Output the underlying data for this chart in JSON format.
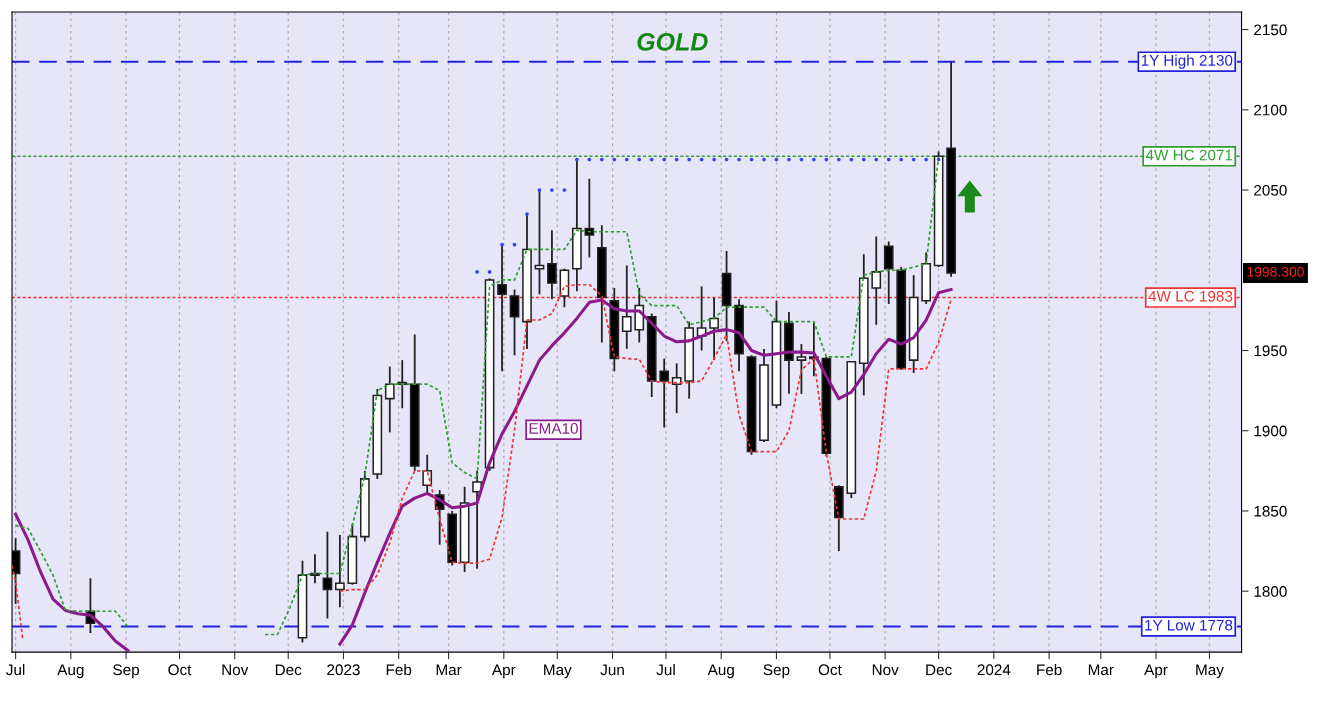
{
  "chart_data": {
    "type": "candlestick",
    "title": "GOLD",
    "x": [
      "2022-07-01",
      "2022-08-12",
      "2022-12-09",
      "2022-12-16",
      "2022-12-23",
      "2022-12-30",
      "2023-01-06",
      "2023-01-13",
      "2023-01-20",
      "2023-01-27",
      "2023-02-03",
      "2023-02-10",
      "2023-02-17",
      "2023-02-24",
      "2023-03-03",
      "2023-03-10",
      "2023-03-17",
      "2023-03-24",
      "2023-03-31",
      "2023-04-07",
      "2023-04-14",
      "2023-04-21",
      "2023-04-28",
      "2023-05-05",
      "2023-05-12",
      "2023-05-19",
      "2023-05-26",
      "2023-06-02",
      "2023-06-09",
      "2023-06-16",
      "2023-06-23",
      "2023-06-30",
      "2023-07-07",
      "2023-07-14",
      "2023-07-21",
      "2023-07-28",
      "2023-08-04",
      "2023-08-11",
      "2023-08-18",
      "2023-08-25",
      "2023-09-01",
      "2023-09-08",
      "2023-09-15",
      "2023-09-22",
      "2023-09-29",
      "2023-10-06",
      "2023-10-13",
      "2023-10-20",
      "2023-10-27",
      "2023-11-03",
      "2023-11-10",
      "2023-11-17",
      "2023-11-24",
      "2023-12-01",
      "2023-12-08"
    ],
    "ohlc": [
      [
        1825,
        1833,
        1792,
        1811
      ],
      [
        1787.5,
        1808,
        1774,
        1780
      ],
      [
        1771,
        1819,
        1768,
        1810
      ],
      [
        1810,
        1823,
        1805,
        1811
      ],
      [
        1808,
        1837,
        1783,
        1801
      ],
      [
        1801,
        1835,
        1790,
        1805
      ],
      [
        1805,
        1842,
        1804,
        1834
      ],
      [
        1834,
        1875,
        1831,
        1870
      ],
      [
        1873,
        1926,
        1870,
        1922
      ],
      [
        1920,
        1940,
        1899,
        1929
      ],
      [
        1929,
        1944,
        1914,
        1930
      ],
      [
        1929,
        1960,
        1875,
        1878
      ],
      [
        1866,
        1885,
        1860,
        1875
      ],
      [
        1860,
        1863,
        1829,
        1851
      ],
      [
        1848,
        1850,
        1816,
        1818
      ],
      [
        1818,
        1865,
        1812,
        1855
      ],
      [
        1862,
        1875,
        1814,
        1868
      ],
      [
        1877,
        1995,
        1875,
        1994
      ],
      [
        1991,
        2016,
        1937,
        1985
      ],
      [
        1984,
        1988,
        1947,
        1971
      ],
      [
        1968,
        2035,
        1951,
        2013
      ],
      [
        2001,
        2050,
        1985,
        2003
      ],
      [
        2004,
        2025,
        1982,
        1992
      ],
      [
        1984,
        2001,
        1977,
        2000
      ],
      [
        2001,
        2069,
        1987,
        2026
      ],
      [
        2026,
        2057,
        2008,
        2022
      ],
      [
        2014,
        2028,
        1955,
        1983
      ],
      [
        1981,
        1989,
        1937,
        1945
      ],
      [
        1962,
        2003,
        1951,
        1971
      ],
      [
        1963,
        1989,
        1955,
        1978
      ],
      [
        1971,
        1973,
        1921,
        1931
      ],
      [
        1937,
        1945,
        1902,
        1931
      ],
      [
        1929,
        1942,
        1911,
        1933
      ],
      [
        1931,
        1968,
        1920,
        1964
      ],
      [
        1959,
        1990,
        1950,
        1964
      ],
      [
        1964,
        1983,
        1944,
        1970
      ],
      [
        1998,
        2012,
        1956,
        1978
      ],
      [
        1978,
        1982,
        1937,
        1948
      ],
      [
        1946,
        1947,
        1885,
        1887
      ],
      [
        1894,
        1951,
        1893,
        1941
      ],
      [
        1916,
        1981,
        1914,
        1968
      ],
      [
        1967,
        1974,
        1923,
        1944
      ],
      [
        1944,
        1954,
        1923,
        1946
      ],
      [
        1945,
        1968,
        1934,
        1946
      ],
      [
        1945,
        1946,
        1884,
        1886
      ],
      [
        1865,
        1866,
        1825,
        1846
      ],
      [
        1861,
        1943,
        1858,
        1943
      ],
      [
        1942,
        2010,
        1922,
        1995
      ],
      [
        1989,
        2021,
        1966,
        1999
      ],
      [
        2015,
        2018,
        1979,
        2001
      ],
      [
        2000,
        2002,
        1938,
        1939
      ],
      [
        1944,
        1997,
        1936,
        1983
      ],
      [
        1981,
        2011,
        1979,
        2004
      ],
      [
        2003,
        2074,
        2002,
        2071
      ],
      [
        2076,
        2130,
        1996,
        1998.3
      ]
    ],
    "series": [
      {
        "name": "EMA10",
        "type": "line",
        "line_style": "solid",
        "color": "#8b1a8b",
        "x": [
          "2022-07-01",
          "2022-07-08",
          "2022-07-15",
          "2022-07-22",
          "2022-07-29",
          "2022-08-05",
          "2022-08-12",
          "2022-08-19",
          "2022-08-26",
          "2022-09-02",
          "2022-09-09",
          "2022-12-30",
          "2023-01-06",
          "2023-01-13",
          "2023-01-20",
          "2023-01-27",
          "2023-02-03",
          "2023-02-10",
          "2023-02-17",
          "2023-02-24",
          "2023-03-03",
          "2023-03-10",
          "2023-03-17",
          "2023-03-24",
          "2023-03-31",
          "2023-04-07",
          "2023-04-14",
          "2023-04-21",
          "2023-04-28",
          "2023-05-05",
          "2023-05-12",
          "2023-05-19",
          "2023-05-26",
          "2023-06-02",
          "2023-06-09",
          "2023-06-16",
          "2023-06-23",
          "2023-06-30",
          "2023-07-07",
          "2023-07-14",
          "2023-07-21",
          "2023-07-28",
          "2023-08-04",
          "2023-08-11",
          "2023-08-18",
          "2023-08-25",
          "2023-09-01",
          "2023-09-08",
          "2023-09-15",
          "2023-09-22",
          "2023-09-29",
          "2023-10-06",
          "2023-10-13",
          "2023-10-20",
          "2023-10-27",
          "2023-11-03",
          "2023-11-10",
          "2023-11-17",
          "2023-11-24",
          "2023-12-01",
          "2023-12-08"
        ],
        "values": [
          1848,
          1832,
          1812,
          1795,
          1788,
          1786,
          1785,
          1778,
          1769,
          1763,
          null,
          1767,
          1779,
          1799,
          1818,
          1836,
          1853,
          1858,
          1861,
          1857,
          1852,
          1853,
          1855,
          1880,
          1898,
          1912,
          1928,
          1944,
          1953,
          1961,
          1970,
          1980,
          1981.5,
          1976,
          1974.6,
          1974.6,
          1967,
          1959,
          1955.4,
          1956,
          1959,
          1962,
          1963,
          1961,
          1950,
          1947,
          1948,
          1949,
          1949,
          1948.5,
          1934,
          1920,
          1924,
          1935,
          1948,
          1957,
          1954,
          1958,
          1969,
          1986,
          1988
        ]
      },
      {
        "type": "line",
        "line_style": "dotted",
        "color": "#2e9e2e",
        "x": [
          "2022-07-01",
          "2022-07-08",
          "2022-07-15",
          "2022-07-22",
          "2022-07-29",
          "2022-08-05",
          "2022-08-12",
          "2022-08-19",
          "2022-08-26",
          "2022-09-02",
          "2022-09-09",
          "2022-11-18",
          "2022-11-25",
          "2022-12-02",
          "2022-12-09",
          "2022-12-16",
          "2022-12-23",
          "2022-12-30",
          "2023-01-06",
          "2023-01-13",
          "2023-01-20",
          "2023-01-27",
          "2023-02-03",
          "2023-02-10",
          "2023-02-17",
          "2023-02-24",
          "2023-03-03",
          "2023-03-10",
          "2023-03-17",
          "2023-03-24",
          "2023-03-31",
          "2023-04-07",
          "2023-04-14",
          "2023-04-21",
          "2023-04-28",
          "2023-05-05",
          "2023-05-12",
          "2023-05-19",
          "2023-05-26",
          "2023-06-02",
          "2023-06-09",
          "2023-06-16",
          "2023-06-23",
          "2023-06-30",
          "2023-07-07",
          "2023-07-14",
          "2023-07-21",
          "2023-07-28",
          "2023-08-04",
          "2023-08-11",
          "2023-08-18",
          "2023-08-25",
          "2023-09-01",
          "2023-09-08",
          "2023-09-15",
          "2023-09-22",
          "2023-09-29",
          "2023-10-06",
          "2023-10-13",
          "2023-10-20",
          "2023-10-27",
          "2023-11-03",
          "2023-11-10",
          "2023-11-17",
          "2023-11-24",
          "2023-12-01"
        ],
        "values": [
          1841,
          1839,
          1825,
          1810,
          1788,
          1787.5,
          1787.5,
          1787.5,
          1787.5,
          1778,
          null,
          1773,
          1773,
          1790,
          1810,
          1811,
          1811,
          1811,
          1841,
          1872,
          1925,
          1929,
          1929,
          1929,
          1929,
          1925,
          1880,
          1874,
          1870,
          1990,
          1994,
          1994,
          2013,
          2013,
          2013,
          2013,
          2025,
          2024,
          2024,
          2024,
          2024,
          1985,
          1978,
          1978,
          1978,
          1966,
          1968,
          1970,
          1977,
          1977,
          1977,
          1977,
          1968,
          1968,
          1968,
          1968,
          1946,
          1946,
          1946,
          1997,
          1999,
          2000,
          2000,
          2002,
          2004,
          2071
        ]
      },
      {
        "type": "line",
        "line_style": "dotted",
        "color": "#ee3333",
        "x": [
          "2022-06-29",
          "2022-07-01",
          "2022-07-05",
          "2022-07-08",
          "2022-12-30",
          "2023-01-06",
          "2023-01-13",
          "2023-01-20",
          "2023-01-27",
          "2023-02-03",
          "2023-02-10",
          "2023-02-17",
          "2023-02-24",
          "2023-03-03",
          "2023-03-10",
          "2023-03-17",
          "2023-03-24",
          "2023-03-31",
          "2023-04-07",
          "2023-04-14",
          "2023-04-21",
          "2023-04-28",
          "2023-05-05",
          "2023-05-12",
          "2023-05-19",
          "2023-05-26",
          "2023-06-02",
          "2023-06-09",
          "2023-06-16",
          "2023-06-23",
          "2023-06-30",
          "2023-07-07",
          "2023-07-14",
          "2023-07-21",
          "2023-07-28",
          "2023-08-04",
          "2023-08-11",
          "2023-08-18",
          "2023-08-25",
          "2023-09-01",
          "2023-09-08",
          "2023-09-15",
          "2023-09-22",
          "2023-09-29",
          "2023-10-06",
          "2023-10-13",
          "2023-10-20",
          "2023-10-27",
          "2023-11-03",
          "2023-11-10",
          "2023-11-17",
          "2023-11-24",
          "2023-12-01",
          "2023-12-08"
        ],
        "values": [
          1816,
          1806,
          1770,
          null,
          1800,
          1801,
          1801,
          1810,
          1830,
          1858,
          1875,
          1875,
          1845,
          1818,
          1817.5,
          1817.5,
          1820,
          1846,
          1900,
          1969,
          1969,
          1973,
          1990,
          1991,
          1991,
          1984,
          1946,
          1945,
          1944.5,
          1931,
          1930,
          1930,
          1930,
          1931,
          1945,
          1960,
          1910,
          1887,
          1887,
          1887,
          1900,
          1938,
          1945,
          1886,
          1845,
          1845,
          1845,
          1875,
          1938.5,
          1938.5,
          1938.5,
          1938.5,
          1955,
          1982
        ]
      },
      {
        "type": "scatter",
        "marker": "circle",
        "color": "#3344ee",
        "x": [
          "2023-03-17",
          "2023-03-24",
          "2023-03-31",
          "2023-04-07",
          "2023-04-14",
          "2023-04-21",
          "2023-04-28",
          "2023-05-05",
          "2023-05-12",
          "2023-05-19",
          "2023-05-26",
          "2023-06-02",
          "2023-06-09",
          "2023-06-16",
          "2023-06-23",
          "2023-06-30",
          "2023-07-07",
          "2023-07-14",
          "2023-07-21",
          "2023-07-28",
          "2023-08-04",
          "2023-08-11",
          "2023-08-18",
          "2023-08-25",
          "2023-09-01",
          "2023-09-08",
          "2023-09-15",
          "2023-09-22",
          "2023-09-29",
          "2023-10-06",
          "2023-10-13",
          "2023-10-20",
          "2023-10-27",
          "2023-11-03",
          "2023-11-10",
          "2023-11-17",
          "2023-11-24",
          "2023-12-01"
        ],
        "values": [
          1999,
          1999,
          2016,
          2016,
          2035,
          2050,
          2050,
          2050,
          2069,
          2069,
          2069,
          2069,
          2069,
          2069,
          2069,
          2069,
          2069,
          2069,
          2069,
          2069,
          2069,
          2069,
          2069,
          2069,
          2069,
          2069,
          2069,
          2069,
          2069,
          2069,
          2069,
          2069,
          2069,
          2069,
          2069,
          2069,
          2069,
          2069
        ]
      }
    ],
    "ref_lines": [
      {
        "axis": "y",
        "value": 2130,
        "label": "1Y High 2130",
        "color": "#2222dd",
        "line_style": "dashed"
      },
      {
        "axis": "y",
        "value": 2071,
        "label": "4W HC 2071",
        "color": "#2e9e2e",
        "line_style": "dotted"
      },
      {
        "axis": "y",
        "value": 1983,
        "label": "4W LC 1983",
        "color": "#ee3333",
        "line_style": "dotted"
      },
      {
        "axis": "y",
        "value": 1778,
        "label": "1Y Low 1778",
        "color": "#2222dd",
        "line_style": "dashed"
      }
    ],
    "annotations": [
      "1998.300"
    ],
    "xlim": [
      "2022-06-29",
      "2024-05-19"
    ],
    "xticks": [
      {
        "value": "2022-07-01",
        "label": "Jul"
      },
      {
        "value": "2022-08-01",
        "label": "Aug"
      },
      {
        "value": "2022-09-01",
        "label": "Sep"
      },
      {
        "value": "2022-10-01",
        "label": "Oct"
      },
      {
        "value": "2022-11-01",
        "label": "Nov"
      },
      {
        "value": "2022-12-01",
        "label": "Dec"
      },
      {
        "value": "2023-01-01",
        "label": "2023"
      },
      {
        "value": "2023-02-01",
        "label": "Feb"
      },
      {
        "value": "2023-03-01",
        "label": "Mar"
      },
      {
        "value": "2023-04-01",
        "label": "Apr"
      },
      {
        "value": "2023-05-01",
        "label": "May"
      },
      {
        "value": "2023-06-01",
        "label": "Jun"
      },
      {
        "value": "2023-07-01",
        "label": "Jul"
      },
      {
        "value": "2023-08-01",
        "label": "Aug"
      },
      {
        "value": "2023-09-01",
        "label": "Sep"
      },
      {
        "value": "2023-10-01",
        "label": "Oct"
      },
      {
        "value": "2023-11-01",
        "label": "Nov"
      },
      {
        "value": "2023-12-01",
        "label": "Dec"
      },
      {
        "value": "2024-01-01",
        "label": "2024"
      },
      {
        "value": "2024-02-01",
        "label": "Feb"
      },
      {
        "value": "2024-03-01",
        "label": "Mar"
      },
      {
        "value": "2024-04-01",
        "label": "Apr"
      },
      {
        "value": "2024-05-01",
        "label": "May"
      }
    ],
    "ylim": [
      1762,
      2161
    ],
    "yticks": [
      1800,
      1850,
      1900,
      1950,
      2050,
      2100,
      2150
    ],
    "grid": "x"
  }
}
